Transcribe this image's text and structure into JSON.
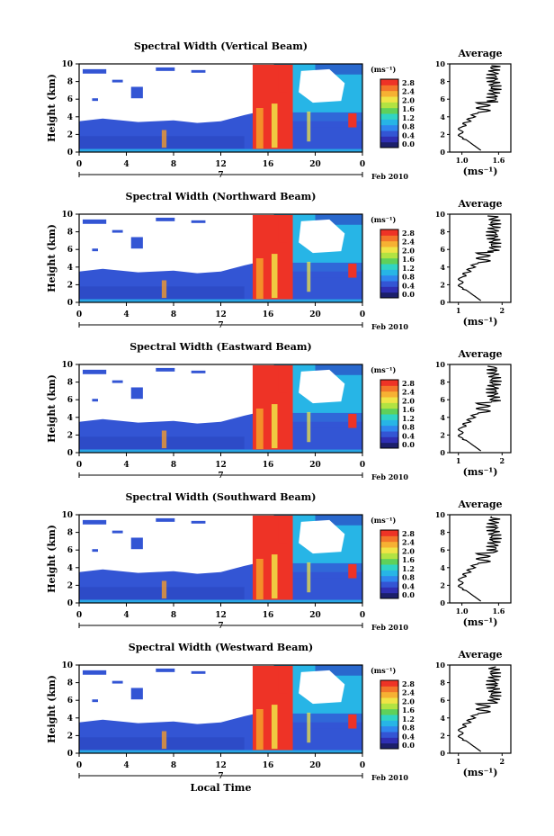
{
  "figure": {
    "xlabel": "Local Time",
    "date_label": "Feb 2010",
    "day_label": "7"
  },
  "chart_data": [
    {
      "type": "heatmap",
      "title": "Spectral Width (Vertical Beam)",
      "xlabel": "",
      "ylabel": "Height (km)",
      "xlim": [
        0,
        24
      ],
      "ylim": [
        0,
        10
      ],
      "xticks": [
        "0",
        "4",
        "8",
        "12",
        "16",
        "20",
        "0"
      ],
      "yticks": [
        "0",
        "2",
        "4",
        "6",
        "8",
        "10"
      ],
      "colorbar": {
        "unit": "(ms⁻¹)",
        "ticks": [
          "0.0",
          "0.4",
          "0.8",
          "1.2",
          "1.6",
          "2.0",
          "2.4",
          "2.8"
        ],
        "range": [
          0,
          2.8
        ]
      },
      "average": {
        "title": "Average",
        "xlabel": "(ms⁻¹)",
        "xticks": [
          "1.0",
          "1.6"
        ],
        "xlim": [
          0.8,
          1.8
        ],
        "yticks": [
          "0",
          "2",
          "4",
          "6",
          "8",
          "10"
        ]
      }
    },
    {
      "type": "heatmap",
      "title": "Spectral Width (Northward Beam)",
      "xlabel": "",
      "ylabel": "Height (km)",
      "xlim": [
        0,
        24
      ],
      "ylim": [
        0,
        10
      ],
      "xticks": [
        "0",
        "4",
        "8",
        "12",
        "16",
        "20",
        "0"
      ],
      "yticks": [
        "0",
        "2",
        "4",
        "6",
        "8",
        "10"
      ],
      "colorbar": {
        "unit": "(ms⁻¹)",
        "ticks": [
          "0.0",
          "0.4",
          "0.8",
          "1.2",
          "1.6",
          "2.0",
          "2.4",
          "2.8"
        ],
        "range": [
          0,
          2.8
        ]
      },
      "average": {
        "title": "Average",
        "xlabel": "(ms⁻¹)",
        "xticks": [
          "1",
          "2"
        ],
        "xlim": [
          0.8,
          2.2
        ],
        "yticks": [
          "0",
          "2",
          "4",
          "6",
          "8",
          "10"
        ]
      }
    },
    {
      "type": "heatmap",
      "title": "Spectral Width (Eastward Beam)",
      "xlabel": "",
      "ylabel": "Height (km)",
      "xlim": [
        0,
        24
      ],
      "ylim": [
        0,
        10
      ],
      "xticks": [
        "0",
        "4",
        "8",
        "12",
        "16",
        "20",
        "0"
      ],
      "yticks": [
        "0",
        "2",
        "4",
        "6",
        "8",
        "10"
      ],
      "colorbar": {
        "unit": "(ms⁻¹)",
        "ticks": [
          "0.0",
          "0.4",
          "0.8",
          "1.2",
          "1.6",
          "2.0",
          "2.4",
          "2.8"
        ],
        "range": [
          0,
          2.8
        ]
      },
      "average": {
        "title": "Average",
        "xlabel": "(ms⁻¹)",
        "xticks": [
          "1",
          "2"
        ],
        "xlim": [
          0.8,
          2.2
        ],
        "yticks": [
          "0",
          "2",
          "4",
          "6",
          "8",
          "10"
        ]
      }
    },
    {
      "type": "heatmap",
      "title": "Spectral Width (Southward Beam)",
      "xlabel": "",
      "ylabel": "Height (km)",
      "xlim": [
        0,
        24
      ],
      "ylim": [
        0,
        10
      ],
      "xticks": [
        "0",
        "4",
        "8",
        "12",
        "16",
        "20",
        "0"
      ],
      "yticks": [
        "0",
        "2",
        "4",
        "6",
        "8",
        "10"
      ],
      "colorbar": {
        "unit": "(ms⁻¹)",
        "ticks": [
          "0.0",
          "0.4",
          "0.8",
          "1.2",
          "1.6",
          "2.0",
          "2.4",
          "2.8"
        ],
        "range": [
          0,
          2.8
        ]
      },
      "average": {
        "title": "Average",
        "xlabel": "(ms⁻¹)",
        "xticks": [
          "1.0",
          "1.6"
        ],
        "xlim": [
          0.8,
          1.8
        ],
        "yticks": [
          "0",
          "2",
          "4",
          "6",
          "8",
          "10"
        ]
      }
    },
    {
      "type": "heatmap",
      "title": "Spectral Width (Westward Beam)",
      "xlabel": "",
      "ylabel": "Height (km)",
      "xlim": [
        0,
        24
      ],
      "ylim": [
        0,
        10
      ],
      "xticks": [
        "0",
        "4",
        "8",
        "12",
        "16",
        "20",
        "0"
      ],
      "yticks": [
        "0",
        "2",
        "4",
        "6",
        "8",
        "10"
      ],
      "colorbar": {
        "unit": "(ms⁻¹)",
        "ticks": [
          "0.0",
          "0.4",
          "0.8",
          "1.2",
          "1.6",
          "2.0",
          "2.4",
          "2.8"
        ],
        "range": [
          0,
          2.8
        ]
      },
      "average": {
        "title": "Average",
        "xlabel": "(ms⁻¹)",
        "xticks": [
          "1",
          "2"
        ],
        "xlim": [
          0.8,
          2.2
        ],
        "yticks": [
          "0",
          "2",
          "4",
          "6",
          "8",
          "10"
        ]
      }
    }
  ]
}
